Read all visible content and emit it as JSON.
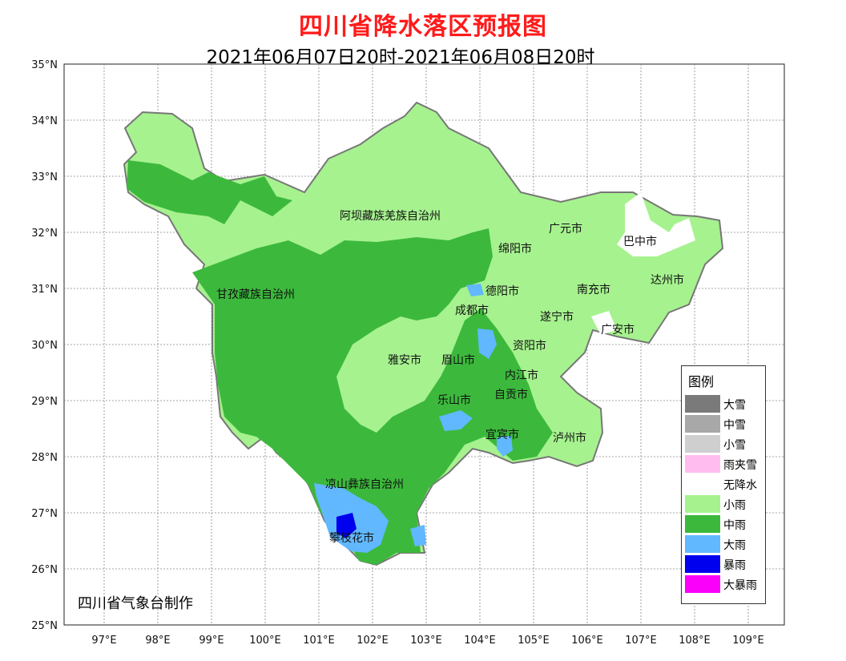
{
  "title": "四川省降水落区预报图",
  "subtitle": "2021年06月07日20时-2021年06月08日20时",
  "credit": "四川省气象台制作",
  "axes": {
    "lat_labels": [
      "35°N",
      "34°N",
      "33°N",
      "32°N",
      "31°N",
      "30°N",
      "29°N",
      "28°N",
      "27°N",
      "26°N",
      "25°N"
    ],
    "lon_labels": [
      "97°E",
      "98°E",
      "99°E",
      "100°E",
      "101°E",
      "102°E",
      "103°E",
      "104°E",
      "105°E",
      "106°E",
      "107°E",
      "108°E",
      "109°E"
    ]
  },
  "places": [
    {
      "name": "阿坝藏族羌族自治州"
    },
    {
      "name": "甘孜藏族自治州"
    },
    {
      "name": "绵阳市"
    },
    {
      "name": "广元市"
    },
    {
      "name": "巴中市"
    },
    {
      "name": "达州市"
    },
    {
      "name": "德阳市"
    },
    {
      "name": "南充市"
    },
    {
      "name": "成都市"
    },
    {
      "name": "遂宁市"
    },
    {
      "name": "广安市"
    },
    {
      "name": "雅安市"
    },
    {
      "name": "眉山市"
    },
    {
      "name": "资阳市"
    },
    {
      "name": "内江市"
    },
    {
      "name": "乐山市"
    },
    {
      "name": "自贡市"
    },
    {
      "name": "宜宾市"
    },
    {
      "name": "泸州市"
    },
    {
      "name": "凉山彝族自治州"
    },
    {
      "name": "攀枝花市"
    }
  ],
  "legend": {
    "title": "图例",
    "items": [
      {
        "label": "大雪",
        "color": "#7a7a7a"
      },
      {
        "label": "中雪",
        "color": "#a8a8a8"
      },
      {
        "label": "小雪",
        "color": "#cfcfcf"
      },
      {
        "label": "雨夹雪",
        "color": "#ffbdef"
      },
      {
        "label": "无降水",
        "color": "#ffffff"
      },
      {
        "label": "小雨",
        "color": "#a6f28f"
      },
      {
        "label": "中雨",
        "color": "#3cb93c"
      },
      {
        "label": "大雨",
        "color": "#61b8ff"
      },
      {
        "label": "暴雨",
        "color": "#0000ee"
      },
      {
        "label": "大暴雨",
        "color": "#fa00fa"
      }
    ]
  }
}
